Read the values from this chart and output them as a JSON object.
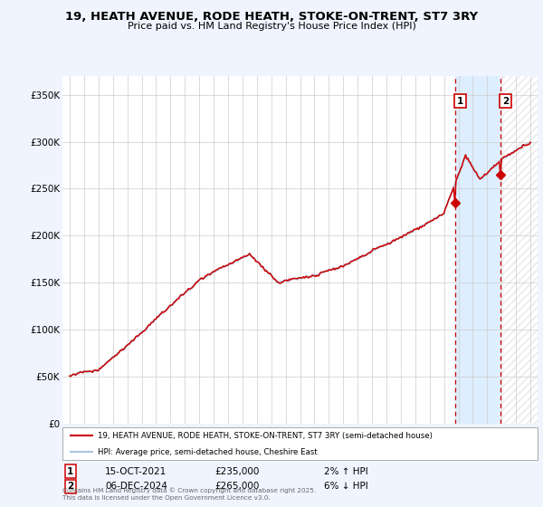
{
  "title": "19, HEATH AVENUE, RODE HEATH, STOKE-ON-TRENT, ST7 3RY",
  "subtitle": "Price paid vs. HM Land Registry's House Price Index (HPI)",
  "ylabel_ticks": [
    "£0",
    "£50K",
    "£100K",
    "£150K",
    "£200K",
    "£250K",
    "£300K",
    "£350K"
  ],
  "ylim": [
    0,
    370000
  ],
  "yticks": [
    0,
    50000,
    100000,
    150000,
    200000,
    250000,
    300000,
    350000
  ],
  "hpi_color": "#aac4e0",
  "price_color": "#cc0000",
  "marker1_x": 2021.79,
  "marker1_price": 235000,
  "marker1_date": "15-OCT-2021",
  "marker1_label": "2% ↑ HPI",
  "marker2_x": 2024.92,
  "marker2_price": 265000,
  "marker2_date": "06-DEC-2024",
  "marker2_label": "6% ↓ HPI",
  "legend_label1": "19, HEATH AVENUE, RODE HEATH, STOKE-ON-TRENT, ST7 3RY (semi-detached house)",
  "legend_label2": "HPI: Average price, semi-detached house, Cheshire East",
  "footer": "Contains HM Land Registry data © Crown copyright and database right 2025.\nThis data is licensed under the Open Government Licence v3.0.",
  "background_color": "#f0f4ff",
  "highlight_color": "#ddeeff",
  "plot_bg_color": "#ffffff",
  "grid_color": "#cccccc",
  "xmin": 1994.5,
  "xmax": 2027.5
}
